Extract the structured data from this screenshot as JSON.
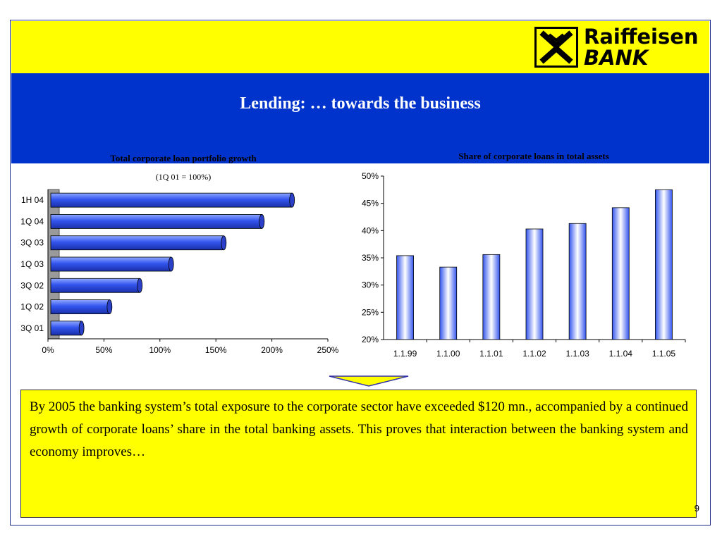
{
  "header": {
    "title": "Lending: … towards the business",
    "logo_line1": "Raiffeisen",
    "logo_line2": "BANK"
  },
  "colors": {
    "top_band": "#ffff00",
    "title_band": "#0033cc",
    "bar_fill": "#3355ee",
    "callout_bg": "#ffff00"
  },
  "chart_data": [
    {
      "type": "bar",
      "orientation": "horizontal",
      "title": "Total corporate loan portfolio growth",
      "subtitle": "(1Q 01 = 100%)",
      "categories": [
        "1H 04",
        "1Q 04",
        "3Q 03",
        "1Q 03",
        "3Q 02",
        "1Q 02",
        "3Q 01"
      ],
      "values": [
        218,
        191,
        157,
        110,
        82,
        55,
        30
      ],
      "xlim": [
        0,
        250
      ],
      "ticks": [
        "0%",
        "50%",
        "100%",
        "150%",
        "200%",
        "250%"
      ],
      "xlabel": "",
      "ylabel": "",
      "grid": false
    },
    {
      "type": "bar",
      "orientation": "vertical",
      "title": "Share of corporate loans in total assets",
      "categories": [
        "1.1.99",
        "1.1.00",
        "1.1.01",
        "1.1.02",
        "1.1.03",
        "1.1.04",
        "1.1.05"
      ],
      "values": [
        35.4,
        33.3,
        35.6,
        40.3,
        41.3,
        44.2,
        47.5
      ],
      "ylim": [
        20,
        50
      ],
      "ticks": [
        "20%",
        "25%",
        "30%",
        "35%",
        "40%",
        "45%",
        "50%"
      ],
      "xlabel": "",
      "ylabel": "",
      "grid": false
    }
  ],
  "callout": {
    "text": "By 2005 the banking system’s total exposure to the corporate sector have exceeded $120 mn., accompanied by a continued growth of corporate loans’ share in the total banking assets. This proves that interaction between the banking system and economy improves…"
  },
  "page_number": "9"
}
